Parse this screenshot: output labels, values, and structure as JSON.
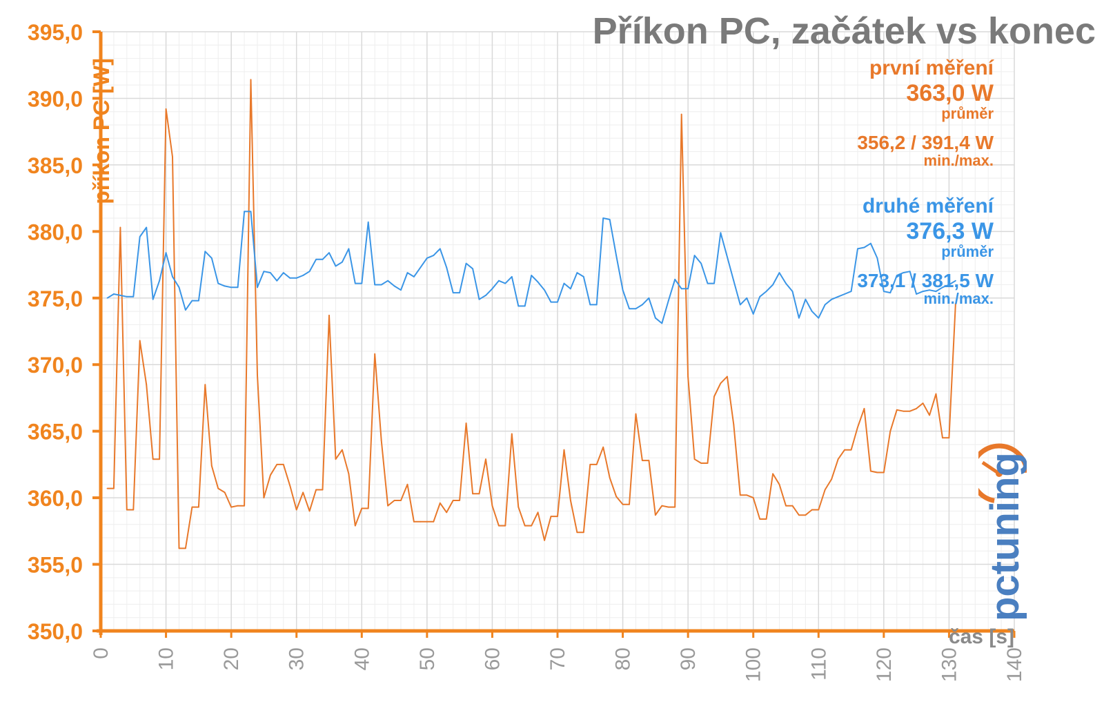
{
  "title": "Příkon PC, začátek vs konec",
  "colors": {
    "first": "#e8782a",
    "second": "#3a95e6",
    "grid": "#dddddd",
    "axis": "#f0841e",
    "title": "#7a7a7a",
    "xtick": "#9a9a9a"
  },
  "legend": {
    "first": {
      "name": "první měření",
      "avg": "363,0 W",
      "avg_label": "průměr",
      "minmax": "356,2 / 391,4 W",
      "minmax_label": "min./max."
    },
    "second": {
      "name": "druhé měření",
      "avg": "376,3 W",
      "avg_label": "průměr",
      "minmax": "373,1 / 381,5 W",
      "minmax_label": "min./max."
    }
  },
  "logo": {
    "text": "pctuning"
  },
  "chart_data": {
    "type": "line",
    "title": "Příkon PC, začátek vs konec",
    "xlabel": "čas [s]",
    "ylabel": "příkon PC [W]",
    "xlim": [
      0,
      140
    ],
    "ylim": [
      350,
      395
    ],
    "xticks": [
      0,
      10,
      20,
      30,
      40,
      50,
      60,
      70,
      80,
      90,
      100,
      110,
      120,
      130,
      140
    ],
    "xtick_labels": [
      "0",
      "10",
      "20",
      "30",
      "40",
      "50",
      "60",
      "70",
      "80",
      "90",
      "100",
      "110",
      "120",
      "130",
      "140"
    ],
    "yticks": [
      350,
      355,
      360,
      365,
      370,
      375,
      380,
      385,
      390,
      395
    ],
    "ytick_labels": [
      "350,0",
      "355,0",
      "360,0",
      "365,0",
      "370,0",
      "375,0",
      "380,0",
      "385,0",
      "390,0",
      "395,0"
    ],
    "grid": true,
    "series": [
      {
        "name": "první měření",
        "color": "#e8782a",
        "x": [
          1,
          2,
          3,
          4,
          5,
          6,
          7,
          8,
          9,
          10,
          11,
          12,
          13,
          14,
          15,
          16,
          17,
          18,
          19,
          20,
          21,
          22,
          23,
          24,
          25,
          26,
          27,
          28,
          29,
          30,
          31,
          32,
          33,
          34,
          35,
          36,
          37,
          38,
          39,
          40,
          41,
          42,
          43,
          44,
          45,
          46,
          47,
          48,
          49,
          50,
          51,
          52,
          53,
          54,
          55,
          56,
          57,
          58,
          59,
          60,
          61,
          62,
          63,
          64,
          65,
          66,
          67,
          68,
          69,
          70,
          71,
          72,
          73,
          74,
          75,
          76,
          77,
          78,
          79,
          80,
          81,
          82,
          83,
          84,
          85,
          86,
          87,
          88,
          89,
          90,
          91,
          92,
          93,
          94,
          95,
          96,
          97,
          98,
          99,
          100,
          101,
          102,
          103,
          104,
          105,
          106,
          107,
          108,
          109,
          110,
          111,
          112,
          113,
          114,
          115,
          116,
          117,
          118,
          119,
          120,
          121,
          122,
          123,
          124,
          125,
          126,
          127,
          128,
          129,
          130,
          131
        ],
        "values": [
          360.7,
          360.7,
          380.3,
          359.1,
          359.1,
          371.8,
          368.5,
          362.9,
          362.9,
          389.2,
          385.6,
          356.2,
          356.2,
          359.3,
          359.3,
          368.5,
          362.4,
          360.7,
          360.4,
          359.3,
          359.4,
          359.4,
          391.4,
          369.2,
          360.0,
          361.7,
          362.5,
          362.5,
          360.9,
          359.1,
          360.4,
          359.0,
          360.6,
          360.6,
          373.7,
          362.9,
          363.6,
          361.8,
          357.9,
          359.2,
          359.2,
          370.8,
          364.3,
          359.4,
          359.8,
          359.8,
          361.0,
          358.2,
          358.2,
          358.2,
          358.2,
          359.6,
          358.9,
          359.8,
          359.8,
          365.6,
          360.3,
          360.3,
          362.9,
          359.4,
          357.9,
          357.9,
          364.8,
          359.3,
          357.9,
          357.9,
          358.9,
          356.8,
          358.6,
          358.6,
          363.6,
          359.8,
          357.4,
          357.4,
          362.5,
          362.5,
          363.8,
          361.5,
          360.1,
          359.5,
          359.5,
          366.3,
          362.8,
          362.8,
          358.7,
          359.4,
          359.3,
          359.3,
          388.8,
          369.1,
          362.9,
          362.6,
          362.6,
          367.6,
          368.6,
          369.1,
          365.5,
          360.2,
          360.2,
          360.0,
          358.4,
          358.4,
          361.8,
          361.0,
          359.4,
          359.4,
          358.7,
          358.7,
          359.1,
          359.1,
          360.6,
          361.4,
          362.9,
          363.6,
          363.6,
          365.3,
          366.7,
          362.0,
          361.9,
          361.9,
          365.0,
          366.6,
          366.5,
          366.5,
          366.7,
          367.1,
          366.2,
          367.8,
          364.5,
          364.5,
          374.6
        ]
      },
      {
        "name": "druhé měření",
        "color": "#3a95e6",
        "x": [
          1,
          2,
          3,
          4,
          5,
          6,
          7,
          8,
          9,
          10,
          11,
          12,
          13,
          14,
          15,
          16,
          17,
          18,
          19,
          20,
          21,
          22,
          23,
          24,
          25,
          26,
          27,
          28,
          29,
          30,
          31,
          32,
          33,
          34,
          35,
          36,
          37,
          38,
          39,
          40,
          41,
          42,
          43,
          44,
          45,
          46,
          47,
          48,
          49,
          50,
          51,
          52,
          53,
          54,
          55,
          56,
          57,
          58,
          59,
          60,
          61,
          62,
          63,
          64,
          65,
          66,
          67,
          68,
          69,
          70,
          71,
          72,
          73,
          74,
          75,
          76,
          77,
          78,
          79,
          80,
          81,
          82,
          83,
          84,
          85,
          86,
          87,
          88,
          89,
          90,
          91,
          92,
          93,
          94,
          95,
          96,
          97,
          98,
          99,
          100,
          101,
          102,
          103,
          104,
          105,
          106,
          107,
          108,
          109,
          110,
          111,
          112,
          113,
          114,
          115,
          116,
          117,
          118,
          119,
          120,
          121,
          122,
          123,
          124,
          125,
          126,
          127,
          128,
          129,
          130,
          131
        ],
        "values": [
          375.0,
          375.3,
          375.2,
          375.1,
          375.1,
          379.6,
          380.3,
          374.9,
          376.3,
          378.4,
          376.6,
          375.8,
          374.1,
          374.8,
          374.8,
          378.5,
          378.0,
          376.1,
          375.9,
          375.8,
          375.8,
          381.5,
          381.5,
          375.8,
          377.0,
          376.9,
          376.3,
          376.9,
          376.5,
          376.5,
          376.7,
          377.0,
          377.9,
          377.9,
          378.4,
          377.4,
          377.7,
          378.7,
          376.1,
          376.1,
          380.7,
          376.0,
          376.0,
          376.3,
          375.9,
          375.6,
          376.9,
          376.6,
          377.3,
          378.0,
          378.2,
          378.7,
          377.3,
          375.4,
          375.4,
          377.6,
          377.2,
          374.9,
          375.2,
          375.7,
          376.3,
          376.1,
          376.6,
          374.4,
          374.4,
          376.7,
          376.2,
          375.6,
          374.7,
          374.7,
          376.1,
          375.7,
          376.9,
          376.6,
          374.5,
          374.5,
          381.0,
          380.9,
          378.2,
          375.6,
          374.2,
          374.2,
          374.5,
          375.0,
          373.5,
          373.1,
          374.8,
          376.4,
          375.7,
          375.7,
          378.2,
          377.6,
          376.1,
          376.1,
          379.9,
          378.1,
          376.3,
          374.5,
          375.0,
          373.8,
          375.1,
          375.5,
          376.0,
          376.9,
          376.1,
          375.5,
          373.5,
          374.9,
          374.0,
          373.5,
          374.5,
          374.9,
          375.1,
          375.3,
          375.5,
          378.7,
          378.8,
          379.1,
          378.0,
          375.5,
          375.4,
          376.7,
          376.9,
          377.0,
          375.3,
          375.5,
          375.6,
          375.5,
          375.8,
          376.0,
          376.3
        ]
      }
    ]
  }
}
